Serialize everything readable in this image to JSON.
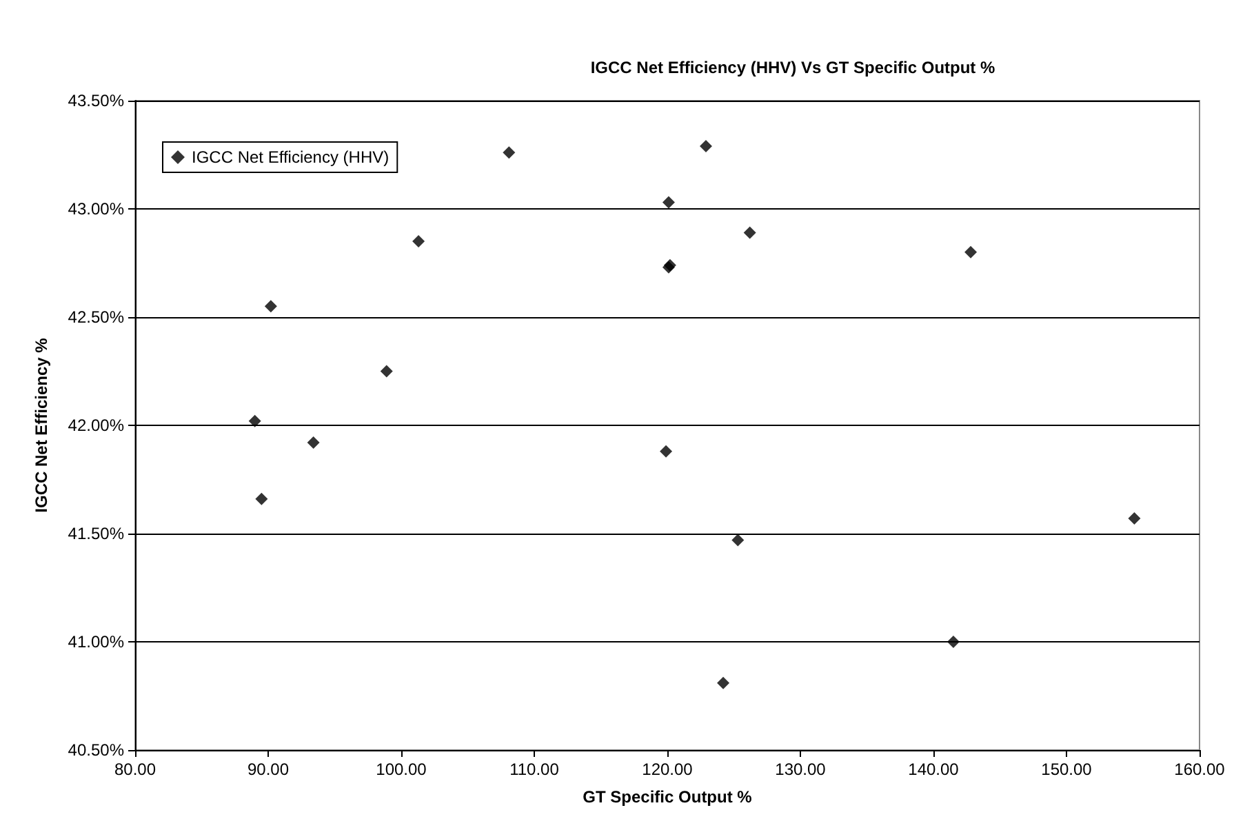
{
  "chart_data": {
    "type": "scatter",
    "title": "IGCC Net Efficiency (HHV) Vs GT Specific Output %",
    "xlabel": "GT Specific Output %",
    "ylabel": "IGCC Net Efficiency %",
    "x": [
      108.1,
      120.1,
      101.3,
      120.1,
      120.2,
      90.2,
      98.9,
      89.0,
      93.4,
      89.5,
      119.9,
      122.9,
      126.2,
      142.8,
      125.3,
      124.2,
      141.5,
      155.1
    ],
    "series": [
      {
        "name": "IGCC Net Efficiency (HHV)",
        "color": "#000000",
        "values": [
          43.26,
          43.03,
          42.85,
          42.73,
          42.74,
          42.55,
          42.25,
          42.02,
          41.92,
          41.66,
          41.88,
          43.29,
          42.89,
          42.8,
          41.47,
          40.81,
          41.0,
          41.57
        ]
      }
    ],
    "xlim": [
      80,
      160
    ],
    "ylim": [
      40.5,
      43.5
    ],
    "xticks": [
      {
        "value": 80,
        "label": "80.00"
      },
      {
        "value": 90,
        "label": "90.00"
      },
      {
        "value": 100,
        "label": "100.00"
      },
      {
        "value": 110,
        "label": "110.00"
      },
      {
        "value": 120,
        "label": "120.00"
      },
      {
        "value": 130,
        "label": "130.00"
      },
      {
        "value": 140,
        "label": "140.00"
      },
      {
        "value": 150,
        "label": "150.00"
      },
      {
        "value": 160,
        "label": "160.00"
      }
    ],
    "yticks": [
      {
        "value": 40.5,
        "label": "40.50%"
      },
      {
        "value": 41,
        "label": "41.00%"
      },
      {
        "value": 41.5,
        "label": "41.50%"
      },
      {
        "value": 42,
        "label": "42.00%"
      },
      {
        "value": 42.5,
        "label": "42.50%"
      },
      {
        "value": 43,
        "label": "43.00%"
      },
      {
        "value": 43.5,
        "label": "43.50%"
      }
    ],
    "grid": "y",
    "legend": "top left",
    "marker": "diamond"
  }
}
